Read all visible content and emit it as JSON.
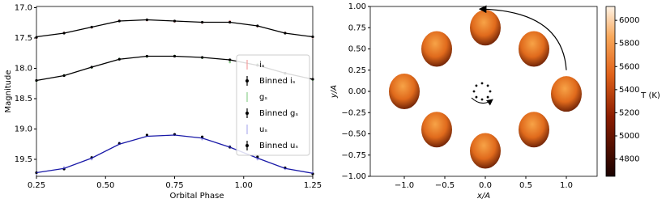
{
  "chart_data": [
    {
      "type": "line",
      "xlabel": "Orbital Phase",
      "ylabel": "Magnitude",
      "xlim": [
        0.25,
        1.25
      ],
      "ylim": [
        16.98,
        19.78
      ],
      "y_inverted": true,
      "xticks": [
        0.25,
        {
          "value": 0.5,
          "label": "0.50"
        },
        0.75,
        {
          "value": 1.0,
          "label": "1.00"
        },
        1.25
      ],
      "yticks": [
        {
          "value": 17.0,
          "label": "17.0"
        },
        17.5,
        {
          "value": 18.0,
          "label": "18.0"
        },
        18.5,
        {
          "value": 19.0,
          "label": "19.0"
        },
        19.5
      ],
      "x": [
        0.25,
        0.35,
        0.45,
        0.55,
        0.65,
        0.75,
        0.85,
        0.95,
        1.05,
        1.15,
        1.25
      ],
      "models": [
        {
          "color": "#000000",
          "values": [
            17.48,
            17.42,
            17.32,
            17.22,
            17.2,
            17.22,
            17.24,
            17.24,
            17.3,
            17.42,
            17.48
          ]
        },
        {
          "color": "#000000",
          "values": [
            18.2,
            18.12,
            17.98,
            17.85,
            17.8,
            17.8,
            17.82,
            17.86,
            17.95,
            18.08,
            18.18
          ]
        },
        {
          "color": "#1a1aa8",
          "values": [
            19.72,
            19.65,
            19.48,
            19.25,
            19.12,
            19.1,
            19.15,
            19.3,
            19.48,
            19.65,
            19.73
          ]
        }
      ],
      "series": [
        {
          "name": "iₛ",
          "color": "#f4a0a0",
          "marker": "raw",
          "values": [
            17.5,
            17.41,
            17.33,
            17.21,
            17.21,
            17.23,
            17.25,
            17.22,
            17.31,
            17.41,
            17.49
          ]
        },
        {
          "name": "Binned iₛ",
          "color": "#000000",
          "marker": "binned",
          "values": [
            17.49,
            17.42,
            17.32,
            17.22,
            17.2,
            17.22,
            17.24,
            17.24,
            17.3,
            17.42,
            17.48
          ]
        },
        {
          "name": "gₛ",
          "color": "#8fd08f",
          "marker": "raw",
          "values": [
            18.21,
            18.11,
            17.99,
            17.84,
            17.81,
            17.79,
            17.83,
            17.9,
            17.93,
            18.09,
            18.19
          ]
        },
        {
          "name": "Binned gₛ",
          "color": "#000000",
          "marker": "binned",
          "values": [
            18.2,
            18.12,
            17.98,
            17.85,
            17.8,
            17.8,
            17.82,
            17.86,
            17.95,
            18.08,
            18.18
          ]
        },
        {
          "name": "uₛ",
          "color": "#b0b0ee",
          "marker": "raw",
          "values": [
            19.74,
            19.63,
            19.5,
            19.22,
            19.1,
            19.08,
            19.17,
            19.28,
            19.5,
            19.66,
            19.71
          ]
        },
        {
          "name": "Binned uₛ",
          "color": "#000000",
          "marker": "binned",
          "values": [
            19.72,
            19.66,
            19.47,
            19.24,
            19.1,
            19.09,
            19.13,
            19.3,
            19.46,
            19.64,
            19.74
          ]
        }
      ],
      "legend": "center right"
    },
    {
      "type": "scatter",
      "xlabel": "x/A",
      "ylabel": "y/A",
      "xlim": [
        -1.42,
        1.38
      ],
      "ylim": [
        -1.0,
        1.0
      ],
      "xticks": [
        {
          "value": -1.0,
          "label": "−1.0"
        },
        {
          "value": -0.5,
          "label": "−0.5"
        },
        {
          "value": 0.0,
          "label": "0.0"
        },
        {
          "value": 0.5,
          "label": "0.5"
        },
        {
          "value": 1.0,
          "label": "1.0"
        }
      ],
      "yticks": [
        {
          "value": -1.0,
          "label": "−1.00"
        },
        {
          "value": -0.75,
          "label": "−0.75"
        },
        {
          "value": -0.5,
          "label": "−0.50"
        },
        {
          "value": -0.25,
          "label": "−0.25"
        },
        {
          "value": 0.0,
          "label": "0.00"
        },
        {
          "value": 0.25,
          "label": "0.25"
        },
        {
          "value": 0.5,
          "label": "0.50"
        },
        {
          "value": 0.75,
          "label": "0.75"
        },
        {
          "value": 1.0,
          "label": "1.00"
        }
      ],
      "x": [
        0.0,
        0.6,
        1.0,
        0.6,
        0.0,
        -0.6,
        -1.0,
        -0.6
      ],
      "values": [
        0.75,
        0.5,
        -0.03,
        -0.45,
        -0.7,
        -0.45,
        0.0,
        0.5
      ],
      "colorbar": {
        "label": "T (K)",
        "lim": [
          4650,
          6120
        ],
        "ticks": [
          4800,
          5000,
          5200,
          5400,
          5600,
          5800,
          6000
        ]
      }
    }
  ]
}
